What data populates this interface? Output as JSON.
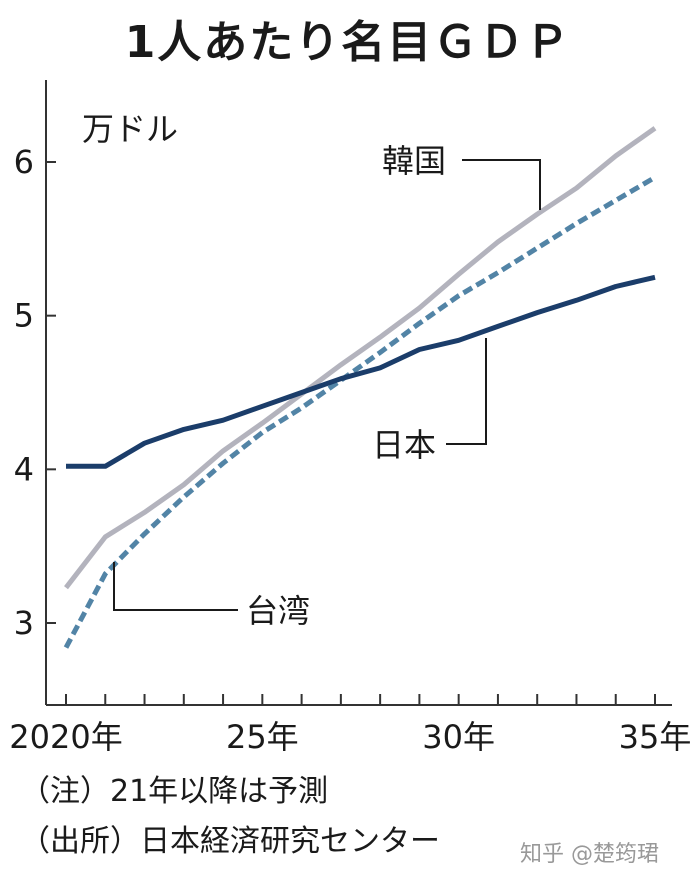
{
  "title": "1人あたり名目ＧＤＰ",
  "unit_label": "万ドル",
  "notes": [
    "（注）21年以降は予測",
    "（出所）日本経済研究センター"
  ],
  "watermark": "知乎 @楚筠珺",
  "colors": {
    "japan": "#1b3d6a",
    "korea": "#b3b3bd",
    "taiwan": "#5284a6",
    "axis": "#333333"
  },
  "chart_data": {
    "type": "line",
    "title": "1人あたり名目ＧＤＰ",
    "ylabel": "万ドル",
    "xlim": [
      2020,
      2035
    ],
    "ylim": [
      2.5,
      6.55
    ],
    "yticks": [
      3,
      4,
      5,
      6
    ],
    "xtick_labels": [
      {
        "x": 2020,
        "label": "2020年"
      },
      {
        "x": 2025,
        "label": "25年"
      },
      {
        "x": 2030,
        "label": "30年"
      },
      {
        "x": 2035,
        "label": "35年"
      }
    ],
    "x": [
      2020,
      2021,
      2022,
      2023,
      2024,
      2025,
      2026,
      2027,
      2028,
      2029,
      2030,
      2031,
      2032,
      2033,
      2034,
      2035
    ],
    "series": [
      {
        "name": "日本",
        "style": "solid",
        "values": [
          4.02,
          4.02,
          4.17,
          4.26,
          4.32,
          4.41,
          4.5,
          4.59,
          4.66,
          4.78,
          4.84,
          4.93,
          5.02,
          5.1,
          5.19,
          5.25
        ]
      },
      {
        "name": "韓国",
        "style": "solid",
        "values": [
          3.23,
          3.56,
          3.72,
          3.9,
          4.12,
          4.3,
          4.49,
          4.68,
          4.86,
          5.05,
          5.27,
          5.48,
          5.66,
          5.83,
          6.04,
          6.22
        ]
      },
      {
        "name": "台湾",
        "style": "dashed",
        "values": [
          2.84,
          3.32,
          3.58,
          3.82,
          4.04,
          4.24,
          4.4,
          4.58,
          4.76,
          4.95,
          5.13,
          5.28,
          5.44,
          5.6,
          5.75,
          5.9
        ]
      }
    ]
  }
}
